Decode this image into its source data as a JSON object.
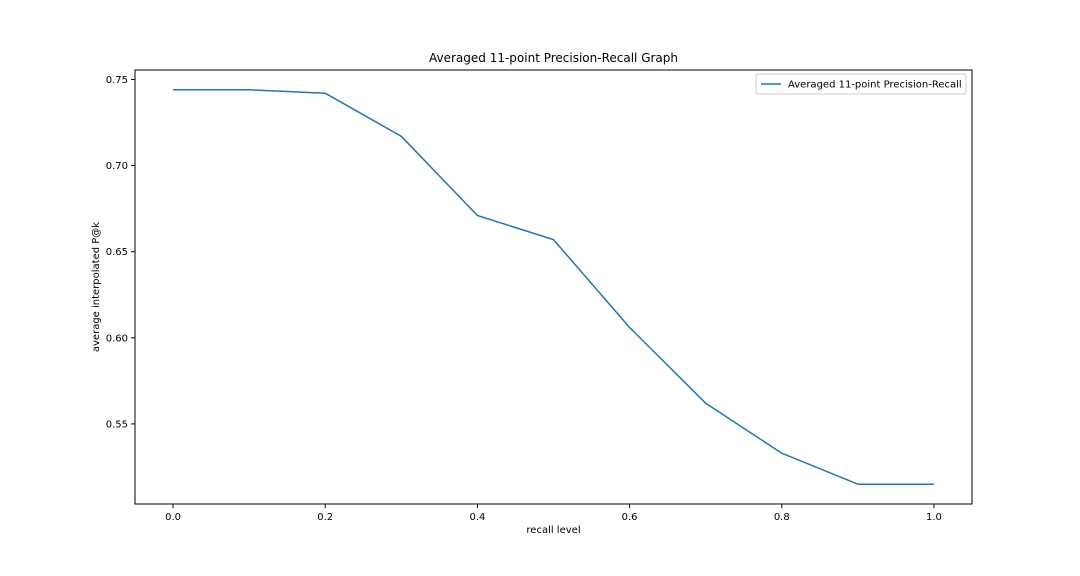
{
  "chart_data": {
    "type": "line",
    "title": "Averaged 11-point Precision-Recall Graph",
    "xlabel": "recall level",
    "ylabel": "average interpolated P@k",
    "xlim": [
      -0.05,
      1.05
    ],
    "ylim": [
      0.5035,
      0.7555
    ],
    "xticks": [
      0.0,
      0.2,
      0.4,
      0.6,
      0.8,
      1.0
    ],
    "xtick_labels": [
      "0.0",
      "0.2",
      "0.4",
      "0.6",
      "0.8",
      "1.0"
    ],
    "yticks": [
      0.55,
      0.6,
      0.65,
      0.7,
      0.75
    ],
    "ytick_labels": [
      "0.55",
      "0.60",
      "0.65",
      "0.70",
      "0.75"
    ],
    "grid": false,
    "legend_position": "top-right",
    "series": [
      {
        "name": "Averaged 11-point Precision-Recall",
        "color": "#1f77b4",
        "x": [
          0.0,
          0.1,
          0.2,
          0.3,
          0.4,
          0.5,
          0.6,
          0.7,
          0.8,
          0.9,
          1.0
        ],
        "y": [
          0.744,
          0.744,
          0.742,
          0.717,
          0.671,
          0.657,
          0.606,
          0.562,
          0.533,
          0.515,
          0.515
        ]
      }
    ]
  }
}
